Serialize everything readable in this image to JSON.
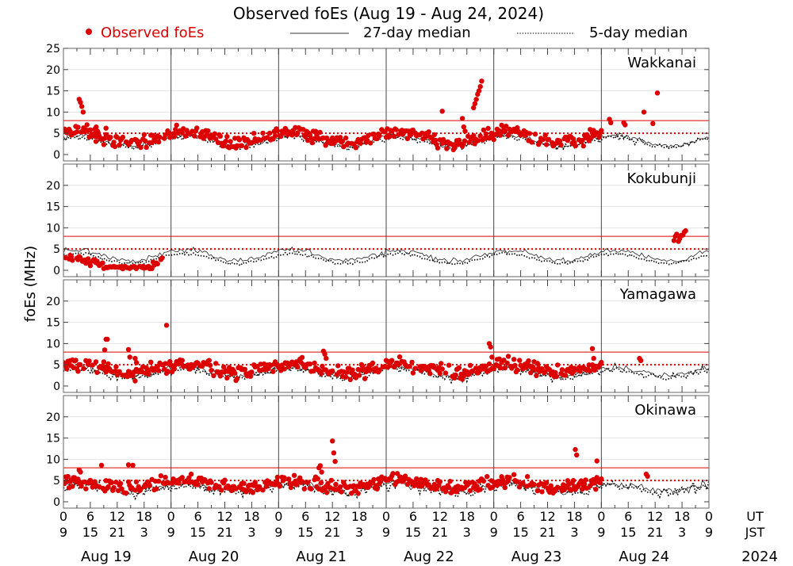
{
  "chart_data": {
    "type": "scatter",
    "title": "Observed foEs (Aug 19 - Aug 24, 2024)",
    "ylabel": "foEs (MHz)",
    "legend": [
      {
        "name": "Observed foEs",
        "color": "#dd0000",
        "style": "dot"
      },
      {
        "name": "27-day median",
        "color": "#333333",
        "style": "solid"
      },
      {
        "name": "5-day median",
        "color": "#333333",
        "style": "dotted"
      }
    ],
    "legend_position": "top",
    "ut_label": "UT",
    "jst_label": "JST",
    "year_label": "2024",
    "x_range_hours": [
      0,
      144
    ],
    "ut_ticks": [
      0,
      6,
      12,
      18
    ],
    "jst_ticks": [
      9,
      15,
      21,
      3
    ],
    "days": [
      "Aug 19",
      "Aug 20",
      "Aug 21",
      "Aug 22",
      "Aug 23",
      "Aug 24"
    ],
    "ylim": [
      -1.5,
      25
    ],
    "top_yticks": [
      0,
      5,
      10,
      15,
      20,
      25
    ],
    "other_yticks": [
      0,
      5,
      10,
      15,
      20
    ],
    "ref_lines": [
      {
        "value": 8,
        "style": "solid"
      },
      {
        "value": 5,
        "style": "dotted"
      }
    ],
    "ref_color": "#dd0000",
    "stations": [
      {
        "name": "Wakkanai",
        "coverage_hours": 120,
        "median27": {
          "base": 2.0,
          "amp": 2.5,
          "noise": 0.6
        },
        "median5": {
          "base": 1.8,
          "amp": 2.3,
          "noise": 0.8
        },
        "bursts": [
          {
            "t": 3.5,
            "values": [
              13.0,
              12.3,
              11.3,
              10.0
            ]
          },
          {
            "t": 7.0,
            "values": [
              6.0,
              6.5,
              5.5
            ]
          },
          {
            "t": 9.5,
            "values": [
              6.2
            ]
          },
          {
            "t": 84.5,
            "values": [
              10.2
            ]
          },
          {
            "t": 89.0,
            "values": [
              8.5,
              6.5,
              5.5
            ]
          },
          {
            "t": 91.5,
            "values": [
              11.0,
              12.0,
              13.0,
              14.2,
              15.0,
              16.0,
              17.3
            ]
          },
          {
            "t": 121.8,
            "values": [
              8.3,
              7.5
            ]
          },
          {
            "t": 125.0,
            "values": [
              7.5,
              7.0
            ]
          },
          {
            "t": 129.5,
            "values": [
              10.0
            ]
          },
          {
            "t": 131.5,
            "values": [
              7.3
            ]
          },
          {
            "t": 132.5,
            "values": [
              14.5
            ]
          }
        ]
      },
      {
        "name": "Kokubunji",
        "coverage_hours": 22,
        "median27": {
          "base": 2.2,
          "amp": 2.6,
          "noise": 0.7
        },
        "median5": {
          "base": 1.6,
          "amp": 2.3,
          "noise": 0.4
        },
        "bursts": [
          {
            "t": 136.2,
            "values": [
              7.0,
              8.0,
              8.5
            ]
          },
          {
            "t": 137.2,
            "values": [
              6.8,
              7.5,
              8.2
            ]
          },
          {
            "t": 138.2,
            "values": [
              8.3,
              9.0,
              9.3
            ]
          }
        ]
      },
      {
        "name": "Yamagawa",
        "coverage_hours": 120,
        "median27": {
          "base": 2.4,
          "amp": 2.0,
          "noise": 0.8
        },
        "median5": {
          "base": 2.0,
          "amp": 2.0,
          "noise": 0.9
        },
        "bursts": [
          {
            "t": 9.2,
            "values": [
              8.5,
              11.0,
              11.0
            ]
          },
          {
            "t": 14.5,
            "values": [
              8.6,
              6.8
            ]
          },
          {
            "t": 16.0,
            "values": [
              6.5,
              5.5
            ]
          },
          {
            "t": 23.0,
            "values": [
              14.3
            ]
          },
          {
            "t": 58.0,
            "values": [
              8.2,
              7.5,
              6.5
            ]
          },
          {
            "t": 95.0,
            "values": [
              10.0,
              9.2,
              6.8
            ]
          },
          {
            "t": 118.0,
            "values": [
              8.8,
              6.5
            ]
          },
          {
            "t": 128.5,
            "values": [
              6.5,
              6.0
            ]
          }
        ]
      },
      {
        "name": "Okinawa",
        "coverage_hours": 120,
        "median27": {
          "base": 2.4,
          "amp": 1.8,
          "noise": 1.0
        },
        "median5": {
          "base": 2.2,
          "amp": 1.8,
          "noise": 1.3
        },
        "bursts": [
          {
            "t": 3.5,
            "values": [
              7.5,
              7.0
            ]
          },
          {
            "t": 8.5,
            "values": [
              8.6
            ]
          },
          {
            "t": 14.5,
            "values": [
              8.7
            ]
          },
          {
            "t": 15.5,
            "values": [
              8.6
            ]
          },
          {
            "t": 57.0,
            "values": [
              8.0,
              8.5,
              7.0
            ]
          },
          {
            "t": 60.0,
            "values": [
              14.3,
              11.5,
              9.5
            ]
          },
          {
            "t": 114.2,
            "values": [
              12.3,
              11.0
            ]
          },
          {
            "t": 119.0,
            "values": [
              9.6
            ]
          },
          {
            "t": 130.0,
            "values": [
              6.5,
              6.0
            ]
          }
        ]
      }
    ]
  }
}
